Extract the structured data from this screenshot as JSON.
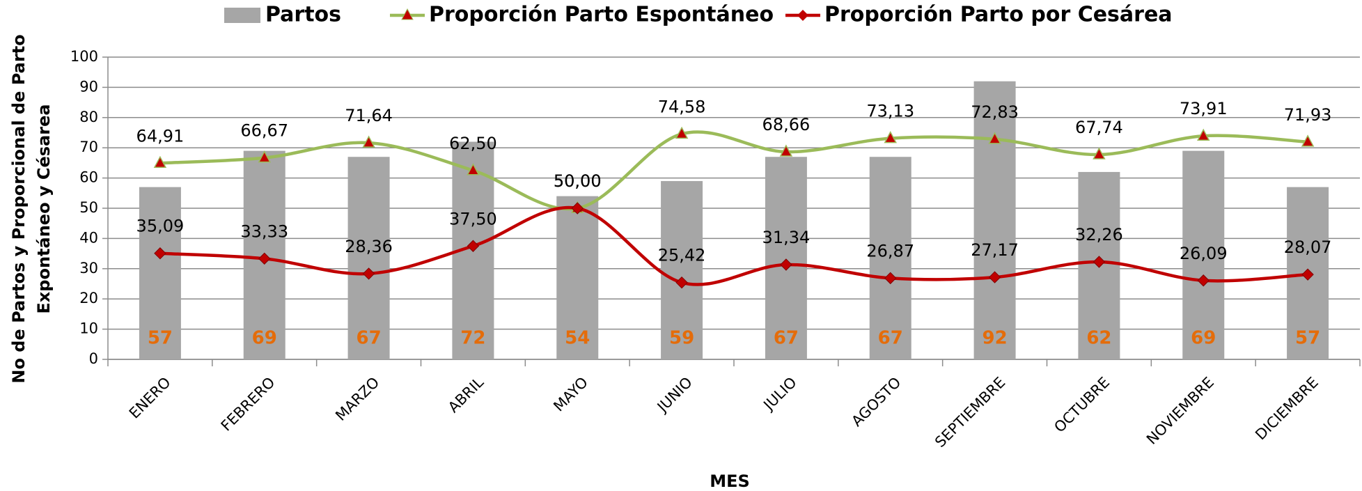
{
  "chart_data": {
    "type": "bar_line",
    "categories": [
      "ENERO",
      "FEBRERO",
      "MARZO",
      "ABRIL",
      "MAYO",
      "JUNIO",
      "JULIO",
      "AGOSTO",
      "SEPTIEMBRE",
      "OCTUBRE",
      "NOVIEMBRE",
      "DICIEMBRE"
    ],
    "series": [
      {
        "name": "Partos",
        "type": "bar",
        "color": "#a6a6a6",
        "label_color": "#e46c0a",
        "values": [
          57,
          69,
          67,
          72,
          54,
          59,
          67,
          67,
          92,
          62,
          69,
          57
        ]
      },
      {
        "name": "Proporción Parto Espontáneo",
        "type": "line",
        "color": "#9bbb59",
        "marker_color": "#c00000",
        "values": [
          64.91,
          66.67,
          71.64,
          62.5,
          50.0,
          74.58,
          68.66,
          73.13,
          72.83,
          67.74,
          73.91,
          71.93
        ],
        "value_labels": [
          "64,91",
          "66,67",
          "71,64",
          "62,50",
          "50,00",
          "74,58",
          "68,66",
          "73,13",
          "72,83",
          "67,74",
          "73,91",
          "71,93"
        ]
      },
      {
        "name": "Proporción Parto por Cesárea",
        "type": "line",
        "color": "#c00000",
        "marker_color": "#c00000",
        "values": [
          35.09,
          33.33,
          28.36,
          37.5,
          50.0,
          25.42,
          31.34,
          26.87,
          27.17,
          32.26,
          26.09,
          28.07
        ],
        "value_labels": [
          "35,09",
          "33,33",
          "28,36",
          "37,50",
          "50,00",
          "25,42",
          "31,34",
          "26,87",
          "27,17",
          "32,26",
          "26,09",
          "28,07"
        ]
      }
    ],
    "x_label": "MES",
    "y_label": [
      "No de Partos y Proporcional de Parto",
      "Expontáneo y Césarea"
    ],
    "ylim": [
      0,
      100
    ],
    "yticks": [
      0,
      10,
      20,
      30,
      40,
      50,
      60,
      70,
      80,
      90,
      100
    ],
    "grid": true,
    "legend": "top"
  }
}
